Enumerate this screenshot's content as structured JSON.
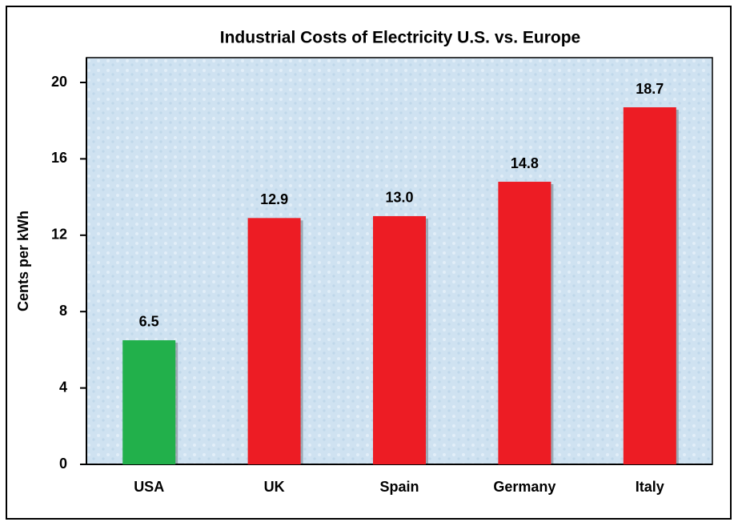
{
  "chart_data": {
    "type": "bar",
    "title": "Industrial Costs of Electricity U.S. vs. Europe",
    "y_label": "Cents per kWh",
    "categories": [
      "USA",
      "UK",
      "Spain",
      "Germany",
      "Italy"
    ],
    "values": [
      6.5,
      12.9,
      13.0,
      14.8,
      18.7
    ],
    "value_labels": [
      "6.5",
      "12.9",
      "13.0",
      "14.8",
      "18.7"
    ],
    "colors": [
      "#22b04b",
      "#ed1c24",
      "#ed1c24",
      "#ed1c24",
      "#ed1c24"
    ],
    "ylim": [
      0,
      21.3
    ],
    "yticks": [
      0,
      4,
      8,
      12,
      16,
      20
    ],
    "grid": false
  }
}
